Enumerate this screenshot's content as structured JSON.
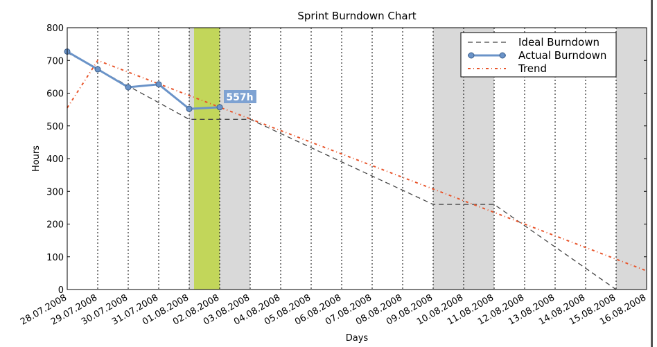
{
  "chart_data": {
    "type": "line",
    "title": "Sprint Burndown Chart",
    "xlabel": "Days",
    "ylabel": "Hours",
    "ylim": [
      0,
      800
    ],
    "yticks": [
      0,
      100,
      200,
      300,
      400,
      500,
      600,
      700,
      800
    ],
    "categories": [
      "28.07.2008",
      "29.07.2008",
      "30.07.2008",
      "31.07.2008",
      "01.08.2008",
      "02.08.2008",
      "03.08.2008",
      "04.08.2008",
      "05.08.2008",
      "06.08.2008",
      "07.08.2008",
      "08.08.2008",
      "09.08.2008",
      "10.08.2008",
      "11.08.2008",
      "12.08.2008",
      "13.08.2008",
      "14.08.2008",
      "15.08.2008",
      "16.08.2008"
    ],
    "grid": "vertical dotted at each day",
    "legend_position": "top-right",
    "series": [
      {
        "name": "Ideal Burndown",
        "style": "dashed",
        "color": "#444444",
        "points": [
          [
            "28.07.2008",
            724
          ],
          [
            "29.07.2008",
            673
          ],
          [
            "30.07.2008",
            622
          ],
          [
            "31.07.2008",
            571
          ],
          [
            "01.08.2008",
            520
          ],
          [
            "03.08.2008",
            520
          ],
          [
            "09.08.2008",
            260
          ],
          [
            "11.08.2008",
            260
          ],
          [
            "15.08.2008",
            0
          ]
        ]
      },
      {
        "name": "Actual Burndown",
        "style": "solid-markers",
        "color": "#6a93c8",
        "points": [
          [
            "28.07.2008",
            727
          ],
          [
            "29.07.2008",
            673
          ],
          [
            "30.07.2008",
            618
          ],
          [
            "31.07.2008",
            627
          ],
          [
            "01.08.2008",
            552
          ],
          [
            "02.08.2008",
            557
          ]
        ]
      },
      {
        "name": "Trend",
        "style": "dash-dot",
        "color": "#e8542a",
        "points": [
          [
            "28.07.2008",
            555
          ],
          [
            "29.07.2008",
            700
          ],
          [
            "16.08.2008",
            57
          ]
        ]
      }
    ],
    "shaded_ranges": [
      {
        "from": "01.08.2008",
        "to": "03.08.2008",
        "color": "#d9d9d9"
      },
      {
        "from": "09.08.2008",
        "to": "11.08.2008",
        "color": "#d9d9d9"
      },
      {
        "from": "15.08.2008",
        "to": "16.08.2008",
        "color": "#d9d9d9"
      }
    ],
    "highlight": {
      "from": "01.08.2008",
      "to": "02.08.2008",
      "color": "#c2d65a"
    },
    "annotation": {
      "text": "557h",
      "at": "02.08.2008",
      "value": 557
    }
  }
}
